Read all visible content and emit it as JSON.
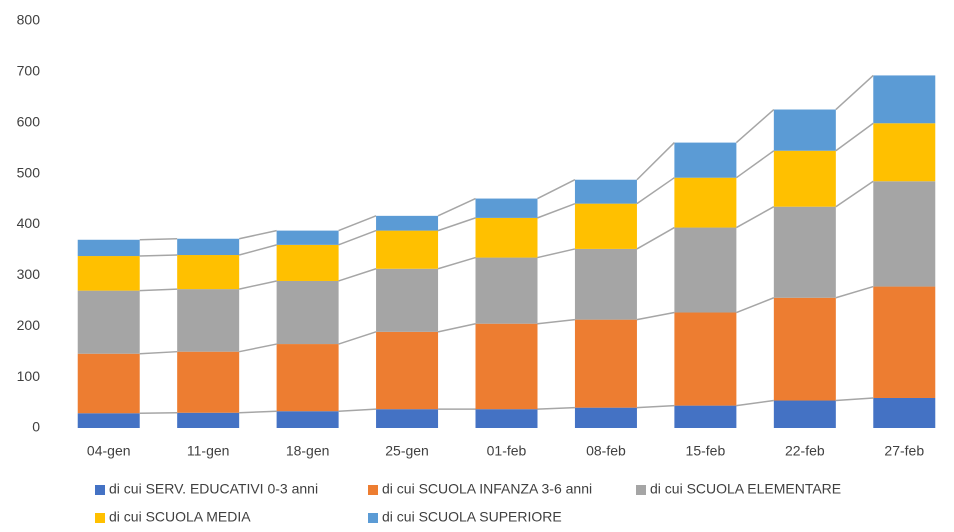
{
  "chart_data": {
    "type": "stacked_bar",
    "categories": [
      "04-gen",
      "11-gen",
      "18-gen",
      "25-gen",
      "01-feb",
      "08-feb",
      "15-feb",
      "22-feb",
      "27-feb"
    ],
    "series": [
      {
        "name": "di cui SERV. EDUCATIVI 0-3 anni",
        "color": "#4472c4",
        "values": [
          29,
          30,
          33,
          37,
          37,
          40,
          44,
          54,
          59
        ]
      },
      {
        "name": "di cui SCUOLA INFANZA 3-6 anni",
        "color": "#ed7d31",
        "values": [
          117,
          120,
          132,
          152,
          168,
          173,
          183,
          202,
          219
        ]
      },
      {
        "name": "di cui SCUOLA ELEMENTARE",
        "color": "#a5a5a5",
        "values": [
          124,
          123,
          124,
          124,
          130,
          139,
          167,
          179,
          207
        ]
      },
      {
        "name": "di cui SCUOLA MEDIA",
        "color": "#ffc000",
        "values": [
          68,
          67,
          71,
          75,
          78,
          89,
          98,
          110,
          114
        ]
      },
      {
        "name": "di cui SCUOLA SUPERIORE",
        "color": "#5b9bd5",
        "values": [
          32,
          32,
          28,
          29,
          38,
          47,
          69,
          81,
          94
        ]
      }
    ],
    "ylim": [
      0,
      800
    ],
    "yticks": [
      0,
      100,
      200,
      300,
      400,
      500,
      600,
      700,
      800
    ],
    "grid": false,
    "legend": "bottom",
    "series_lines": true
  }
}
